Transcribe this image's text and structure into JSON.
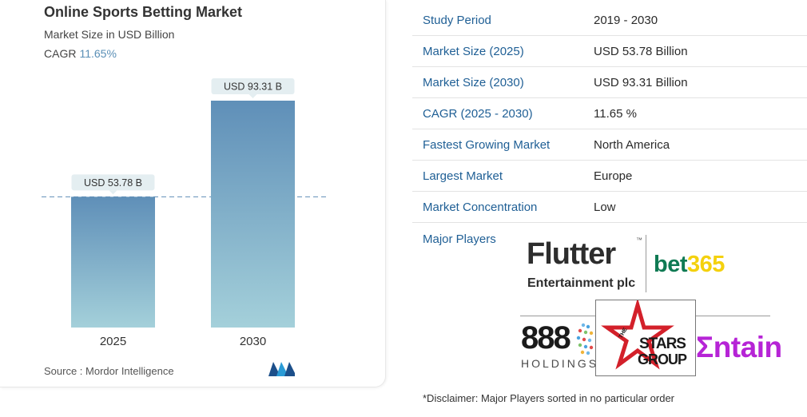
{
  "card": {
    "title": "Online Sports Betting Market",
    "subtitle": "Market Size in USD Billion",
    "cagr_label": "CAGR",
    "cagr_value": "11.65%",
    "source": "Source :  Mordor Intelligence",
    "logo_icon": "mordor-intelligence-logo"
  },
  "chart_data": {
    "type": "bar",
    "categories": [
      "2025",
      "2030"
    ],
    "values": [
      53.78,
      93.31
    ],
    "data_labels": [
      "USD 53.78 B",
      "USD 93.31 B"
    ],
    "title": "Online Sports Betting Market",
    "ylabel": "Market Size in USD Billion",
    "ylim": [
      0,
      93.31
    ],
    "reference_line": 53.78,
    "colors": {
      "bar_top": "#5f8fb8",
      "bar_bottom": "#a4d0da",
      "label_bg": "#e4eef1",
      "dash": "#5f8fb8"
    }
  },
  "table": {
    "rows": [
      {
        "key": "Study Period",
        "value": "2019 - 2030"
      },
      {
        "key": "Market Size (2025)",
        "value": "USD 53.78 Billion"
      },
      {
        "key": "Market Size (2030)",
        "value": "USD 93.31 Billion"
      },
      {
        "key": "CAGR (2025 - 2030)",
        "value": "11.65 %"
      },
      {
        "key": "Fastest Growing Market",
        "value": "North America"
      },
      {
        "key": "Largest Market",
        "value": "Europe"
      },
      {
        "key": "Market Concentration",
        "value": "Low"
      }
    ],
    "major_players_label": "Major Players"
  },
  "players": {
    "flutter": {
      "word": "Flutter",
      "tm": "™",
      "sub": "Entertainment plc"
    },
    "bet365": {
      "part1": "bet",
      "part2": "365"
    },
    "n888": {
      "word": "888",
      "sub": "HOLDINGS"
    },
    "stars": {
      "the": "THE",
      "word1": "STARS",
      "word2": "GROUP"
    },
    "entain": {
      "word": "Σntain"
    }
  },
  "disclaimer": "*Disclaimer: Major Players sorted in no particular order",
  "colors": {
    "accent_blue": "#1f5f95",
    "bet365_green": "#0f7a53",
    "bet365_yellow": "#f4d10e",
    "entain_purple": "#b624d6",
    "stars_red": "#d3202a"
  }
}
